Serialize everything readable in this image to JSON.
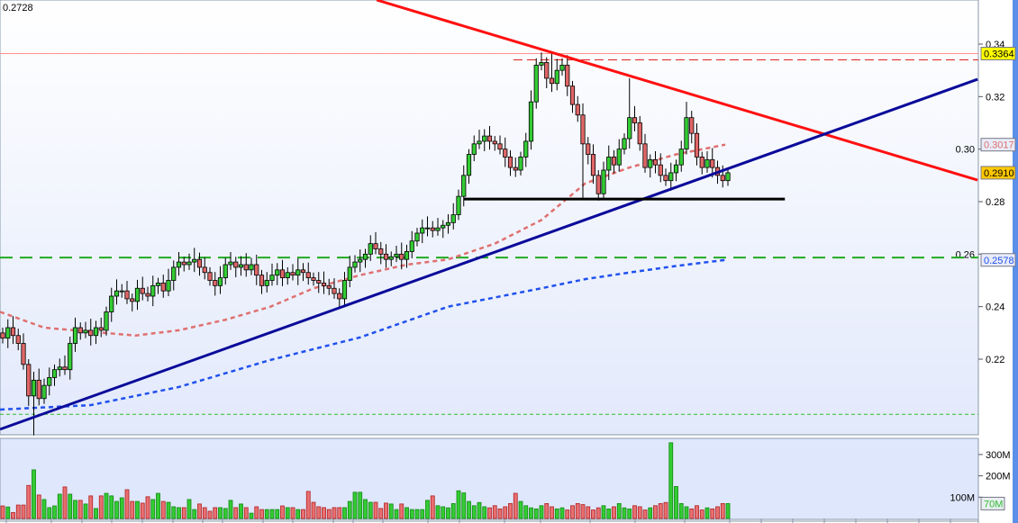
{
  "chart_data": {
    "type": "candlestick",
    "corner_value": "0.2728",
    "price_axis": {
      "ylim": [
        0.1912,
        0.3568
      ],
      "ticks": [
        "0.34",
        "0.32",
        "0.30",
        "0.28",
        "0.26",
        "0.24",
        "0.22"
      ],
      "tick_values": [
        0.34,
        0.32,
        0.3,
        0.28,
        0.26,
        0.24,
        0.22
      ]
    },
    "volume_axis": {
      "ticks": [
        "300M",
        "200M",
        "100M"
      ],
      "tick_values": [
        300,
        200,
        100
      ],
      "unit": "M"
    },
    "close": [
      0.228,
      0.232,
      0.229,
      0.226,
      0.218,
      0.206,
      0.212,
      0.205,
      0.21,
      0.213,
      0.216,
      0.217,
      0.216,
      0.226,
      0.232,
      0.23,
      0.231,
      0.229,
      0.232,
      0.231,
      0.238,
      0.244,
      0.246,
      0.246,
      0.243,
      0.242,
      0.247,
      0.245,
      0.244,
      0.248,
      0.249,
      0.246,
      0.25,
      0.255,
      0.257,
      0.256,
      0.257,
      0.258,
      0.255,
      0.253,
      0.25,
      0.248,
      0.251,
      0.256,
      0.257,
      0.255,
      0.256,
      0.254,
      0.256,
      0.252,
      0.248,
      0.25,
      0.252,
      0.254,
      0.251,
      0.253,
      0.252,
      0.254,
      0.253,
      0.251,
      0.25,
      0.249,
      0.248,
      0.247,
      0.245,
      0.243,
      0.25,
      0.255,
      0.257,
      0.258,
      0.26,
      0.264,
      0.262,
      0.26,
      0.258,
      0.259,
      0.26,
      0.258,
      0.261,
      0.265,
      0.268,
      0.27,
      0.27,
      0.269,
      0.27,
      0.271,
      0.272,
      0.275,
      0.282,
      0.29,
      0.298,
      0.302,
      0.303,
      0.305,
      0.303,
      0.302,
      0.3,
      0.297,
      0.293,
      0.292,
      0.297,
      0.303,
      0.318,
      0.332,
      0.333,
      0.327,
      0.325,
      0.33,
      0.332,
      0.324,
      0.317,
      0.313,
      0.302,
      0.298,
      0.29,
      0.283,
      0.292,
      0.297,
      0.294,
      0.3,
      0.304,
      0.312,
      0.31,
      0.302,
      0.293,
      0.296,
      0.294,
      0.29,
      0.288,
      0.291,
      0.294,
      0.3,
      0.312,
      0.306,
      0.297,
      0.293,
      0.296,
      0.293,
      0.29,
      0.288,
      0.291
    ],
    "wick_extremes": [
      {
        "bar": 6,
        "low": 0.191
      },
      {
        "bar": 106,
        "high": 0.337
      },
      {
        "bar": 121,
        "high": 0.327
      },
      {
        "bar": 132,
        "high": 0.318
      },
      {
        "bar": 112,
        "low": 0.281
      }
    ],
    "volume": [
      59,
      54,
      28,
      63,
      63,
      155,
      228,
      110,
      89,
      51,
      59,
      114,
      148,
      114,
      85,
      85,
      68,
      106,
      47,
      106,
      118,
      106,
      80,
      97,
      135,
      80,
      80,
      72,
      102,
      89,
      118,
      80,
      76,
      55,
      51,
      51,
      89,
      42,
      68,
      51,
      34,
      51,
      51,
      47,
      85,
      51,
      68,
      51,
      25,
      55,
      42,
      42,
      42,
      42,
      59,
      51,
      51,
      42,
      42,
      127,
      76,
      55,
      51,
      42,
      51,
      51,
      51,
      80,
      123,
      123,
      89,
      76,
      76,
      47,
      72,
      68,
      42,
      68,
      51,
      42,
      42,
      42,
      85,
      106,
      60,
      55,
      50,
      70,
      130,
      120,
      80,
      60,
      75,
      55,
      50,
      60,
      45,
      55,
      70,
      118,
      80,
      60,
      50,
      45,
      60,
      70,
      55,
      45,
      50,
      40,
      60,
      70,
      65,
      55,
      40,
      50,
      60,
      45,
      55,
      70,
      50,
      45,
      60,
      55,
      40,
      50,
      60,
      70,
      75,
      355,
      150,
      70,
      55,
      45,
      60,
      40,
      50,
      45,
      55,
      70,
      70
    ],
    "moving_averages": [
      {
        "color": "#e07070",
        "label": "0.3017",
        "points": [
          [
            -0.5,
            0.238
          ],
          [
            8,
            0.232
          ],
          [
            25.6,
            0.229
          ],
          [
            34,
            0.231
          ],
          [
            43,
            0.235
          ],
          [
            51.7,
            0.24
          ],
          [
            60,
            0.247
          ],
          [
            69,
            0.252
          ],
          [
            78,
            0.256
          ],
          [
            86,
            0.258
          ],
          [
            95,
            0.264
          ],
          [
            104,
            0.273
          ],
          [
            112.5,
            0.287
          ],
          [
            121,
            0.293
          ],
          [
            130,
            0.298
          ],
          [
            139.5,
            0.3017
          ]
        ]
      },
      {
        "color": "#2050ee",
        "label": "0.2578",
        "points": [
          [
            -0.5,
            0.2008
          ],
          [
            17,
            0.2025
          ],
          [
            34,
            0.2094
          ],
          [
            51.7,
            0.2197
          ],
          [
            69,
            0.2283
          ],
          [
            86,
            0.24
          ],
          [
            104,
            0.247
          ],
          [
            112.5,
            0.2505
          ],
          [
            121,
            0.253
          ],
          [
            130,
            0.2555
          ],
          [
            139.5,
            0.2578
          ]
        ]
      }
    ],
    "trend_lines": [
      {
        "color": "#ff1010",
        "from": [
          72.2,
          0.3568
        ],
        "to": [
          188.2,
          0.2882
        ]
      },
      {
        "color": "#0a0a9a",
        "from": [
          -0.5,
          0.1933
        ],
        "to": [
          188.2,
          0.3266
        ]
      },
      {
        "color": "#000000",
        "from": [
          89,
          0.281
        ],
        "to": [
          151,
          0.281
        ]
      }
    ],
    "horizontal_lines": [
      {
        "price": 0.3364,
        "color": "#ff9090",
        "style": "solid"
      },
      {
        "price": 0.334,
        "color": "#e02020",
        "style": "dashed",
        "from_bar": 98.6
      },
      {
        "price": 0.2587,
        "color": "#22aa22",
        "style": "longdash"
      },
      {
        "price": 0.199,
        "color": "#33bb33",
        "style": "shortdash"
      }
    ],
    "price_labels": [
      {
        "text": "0.3364",
        "price": 0.3364,
        "bg": "#ffff00",
        "fg": "#000000"
      },
      {
        "text": "0.3017",
        "price": 0.3017,
        "bg": "#e8ecf8",
        "fg": "#e07070"
      },
      {
        "text": "0.2910",
        "price": 0.291,
        "bg": "#ffc800",
        "fg": "#000000"
      },
      {
        "text": "0.2578",
        "price": 0.2578,
        "bg": "#e8ecf8",
        "fg": "#2050ee"
      }
    ],
    "volume_label": {
      "text": "70M",
      "value": 70,
      "fg": "#33bb33"
    },
    "colors": {
      "up": "#33cc33",
      "down": "#e06666",
      "accent_bar": "#5b8fe8"
    }
  }
}
